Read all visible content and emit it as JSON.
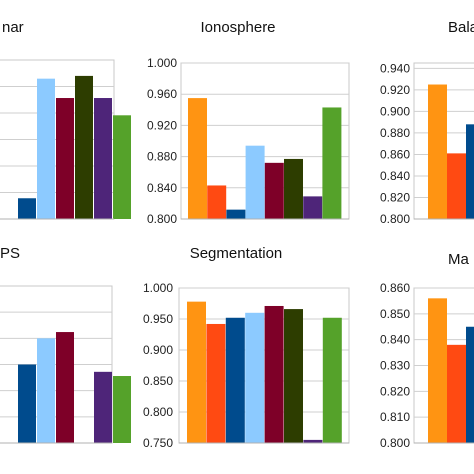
{
  "colors": [
    "#ff9412",
    "#ff4a12",
    "#004b8d",
    "#8ccaff",
    "#7e0028",
    "#2d3d00",
    "#4e2579",
    "#55a22a"
  ],
  "chart_data": [
    {
      "type": "bar",
      "title": "nar",
      "tick_labels": [],
      "ylim": [
        0.76,
        0.99
      ],
      "values": [
        null,
        null,
        0.79,
        0.963,
        0.935,
        0.967,
        0.935,
        0.91
      ],
      "grid": true
    },
    {
      "type": "bar",
      "title": "Ionosphere",
      "tick_labels": [
        "0.800",
        "0.840",
        "0.880",
        "0.920",
        "0.960",
        "1.000"
      ],
      "ylim": [
        0.8,
        1.0
      ],
      "values": [
        0.955,
        0.843,
        0.812,
        0.894,
        0.872,
        0.877,
        0.829,
        0.943
      ],
      "grid": true
    },
    {
      "type": "bar",
      "title": "Bala",
      "tick_labels": [
        "0.800",
        "0.820",
        "0.840",
        "0.860",
        "0.880",
        "0.900",
        "0.920",
        "0.940"
      ],
      "ylim": [
        0.8,
        0.945
      ],
      "values": [
        0.925,
        0.861,
        0.888
      ],
      "grid": true
    },
    {
      "type": "bar",
      "title": "PS",
      "tick_labels": [],
      "ylim": [
        0.88,
        1.03
      ],
      "values": [
        null,
        null,
        0.955,
        0.98,
        0.986,
        null,
        0.948,
        0.944
      ],
      "grid": true
    },
    {
      "type": "bar",
      "title": "Segmentation",
      "tick_labels": [
        "0.750",
        "0.800",
        "0.850",
        "0.900",
        "0.950",
        "1.000"
      ],
      "ylim": [
        0.75,
        1.0
      ],
      "values": [
        0.978,
        0.942,
        0.952,
        0.96,
        0.971,
        0.966,
        0.755,
        0.952
      ],
      "grid": true
    },
    {
      "type": "bar",
      "title": "Ma",
      "tick_labels": [
        "0.800",
        "0.810",
        "0.820",
        "0.830",
        "0.840",
        "0.850",
        "0.860"
      ],
      "ylim": [
        0.8,
        0.86
      ],
      "values": [
        0.856,
        0.838,
        0.845
      ],
      "grid": true
    }
  ]
}
